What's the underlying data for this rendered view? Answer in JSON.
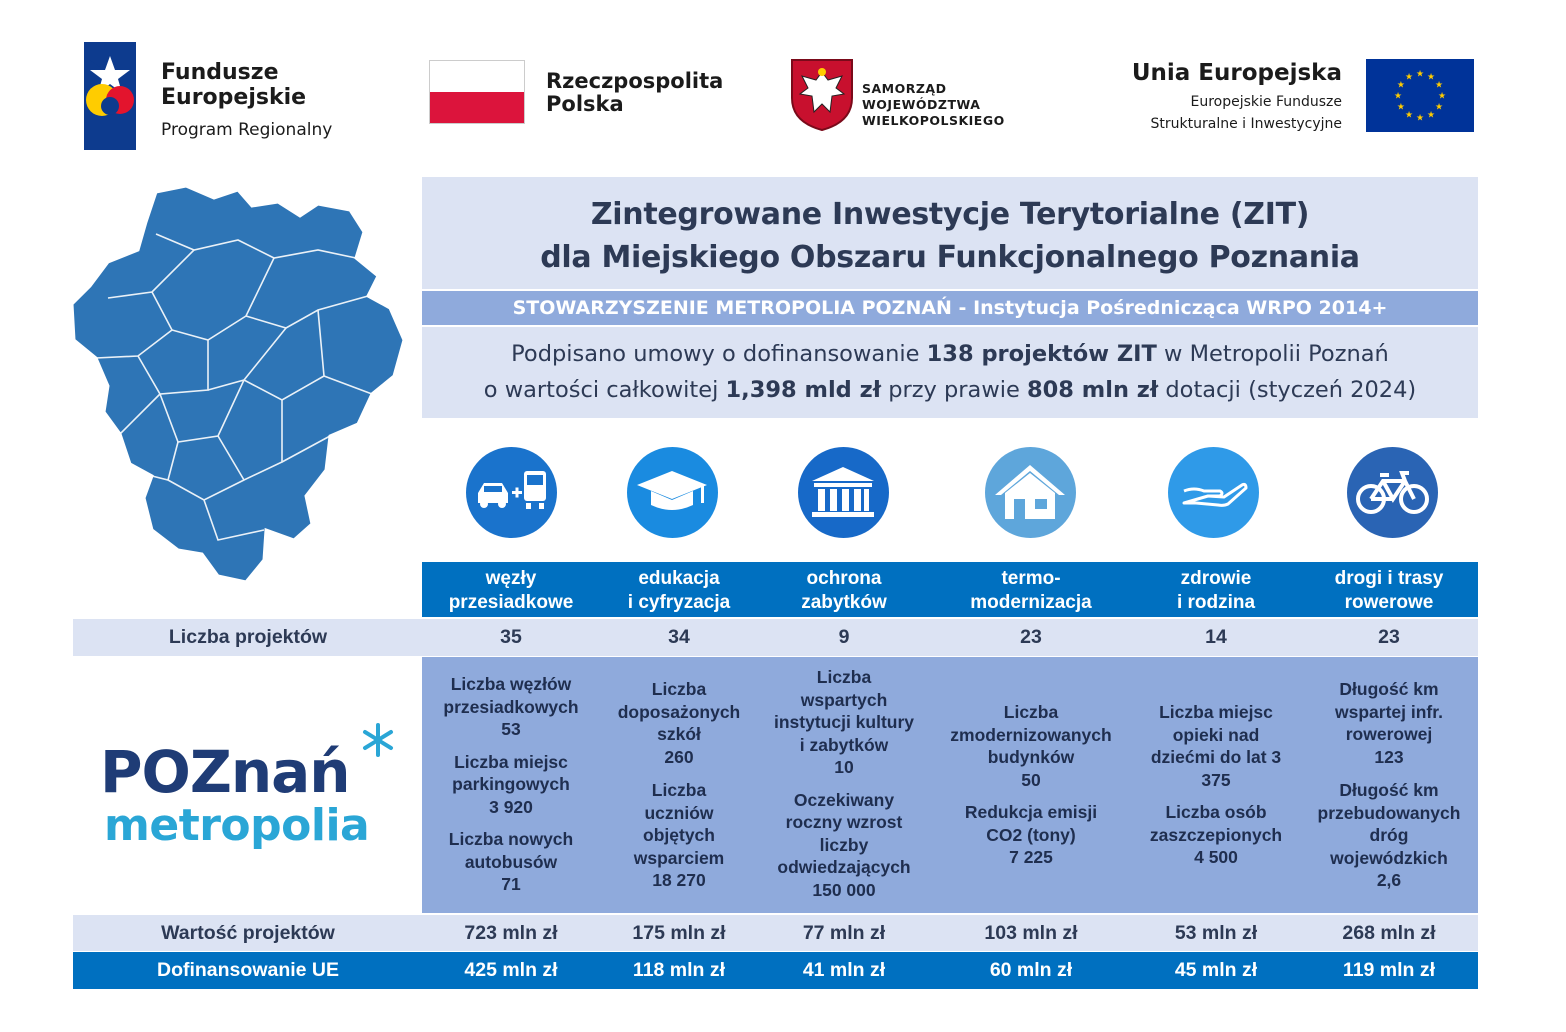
{
  "logos": {
    "fundusze": {
      "line1": "Fundusze",
      "line2": "Europejskie",
      "sub": "Program Regionalny"
    },
    "rzeczpospolita": {
      "line1": "Rzeczpospolita",
      "line2": "Polska",
      "colors": [
        "#ffffff",
        "#dc143c"
      ]
    },
    "samorzad": {
      "line1": "SAMORZĄD WOJEWÓDZTWA",
      "line2": "WIELKOPOLSKIEGO"
    },
    "unia": {
      "title": "Unia Europejska",
      "sub1": "Europejskie Fundusze",
      "sub2": "Strukturalne i Inwestycyjne",
      "flag_color": "#003399",
      "star_color": "#ffcc00"
    }
  },
  "header": {
    "title_line1": "Zintegrowane Inwestycje Terytorialne (ZIT)",
    "title_line2": "dla Miejskiego Obszaru Funkcjonalnego Poznania",
    "subtitle": "STOWARZYSZENIE METROPOLIA POZNAŃ - Instytucja Pośrednicząca WRPO 2014+",
    "info_line1": {
      "pre": "Podpisano umowy o dofinansowanie ",
      "bold": "138 projektów ZIT",
      "post": " w Metropolii Poznań"
    },
    "info_line2": {
      "pre": "o wartości całkowitej ",
      "bold1": "1,398 mld zł",
      "mid": " przy prawie ",
      "bold2": "808 mln zł",
      "post": " dotacji (styczeń 2024)"
    }
  },
  "colors": {
    "dark_blue": "#0070c0",
    "light_blue": "#dce3f3",
    "mid_blue": "#8faadc",
    "map_blue": "#2e75b6",
    "text": "#2d3a55"
  },
  "categories": [
    {
      "icon": "transfer-hub-icon",
      "color": "#1a73cc",
      "label1": "węzły",
      "label2": "przesiadkowe"
    },
    {
      "icon": "graduation-cap-icon",
      "color": "#1a8be0",
      "label1": "edukacja",
      "label2": "i cyfryzacja"
    },
    {
      "icon": "monument-icon",
      "color": "#1769c8",
      "label1": "ochrona",
      "label2": "zabytków"
    },
    {
      "icon": "house-icon",
      "color": "#5ea6db",
      "label1": "termo-",
      "label2": "modernizacja"
    },
    {
      "icon": "caring-hand-icon",
      "color": "#2f9ae8",
      "label1": "zdrowie",
      "label2": "i rodzina"
    },
    {
      "icon": "bicycle-icon",
      "color": "#2a64b4",
      "label1": "drogi i trasy",
      "label2": "rowerowe"
    }
  ],
  "table": {
    "count_label": "Liczba projektów",
    "counts": [
      "35",
      "34",
      "9",
      "23",
      "14",
      "23"
    ],
    "value_label": "Wartość projektów",
    "values": [
      "723 mln zł",
      "175 mln zł",
      "77 mln zł",
      "103 mln zł",
      "53 mln zł",
      "268 mln zł"
    ],
    "eu_label": "Dofinansowanie UE",
    "eu": [
      "425 mln zł",
      "118 mln zł",
      "41 mln zł",
      "60 mln zł",
      "45 mln zł",
      "119 mln zł"
    ]
  },
  "indicators": [
    [
      [
        "Liczba węzłów",
        "przesiadkowych",
        "53"
      ],
      [
        "Liczba miejsc",
        "parkingowych",
        "3 920"
      ],
      [
        "Liczba nowych",
        "autobusów",
        "71"
      ]
    ],
    [
      [
        "Liczba",
        "doposażonych",
        "szkół",
        "260"
      ],
      [
        "Liczba",
        "uczniów",
        "objętych",
        "wsparciem",
        "18 270"
      ]
    ],
    [
      [
        "Liczba",
        "wspartych",
        "instytucji kultury",
        "i zabytków",
        "10"
      ],
      [
        "Oczekiwany",
        "roczny wzrost",
        "liczby",
        "odwiedzających",
        "150 000"
      ]
    ],
    [
      [
        "Liczba",
        "zmodernizowanych",
        "budynków",
        "50"
      ],
      [
        "Redukcja emisji",
        "CO2 (tony)",
        "7 225"
      ]
    ],
    [
      [
        "Liczba miejsc",
        "opieki nad",
        "dziećmi do lat 3",
        "375"
      ],
      [
        "Liczba osób",
        "zaszczepionych",
        "4 500"
      ]
    ],
    [
      [
        "Długość km",
        "wspartej infr.",
        "rowerowej",
        "123"
      ],
      [
        "Długość km",
        "przebudowanych",
        "dróg",
        "wojewódzkich",
        "2,6"
      ]
    ]
  ],
  "poznan_logo": {
    "top": "POZnań",
    "bottom": "metropolia",
    "star": "*"
  }
}
